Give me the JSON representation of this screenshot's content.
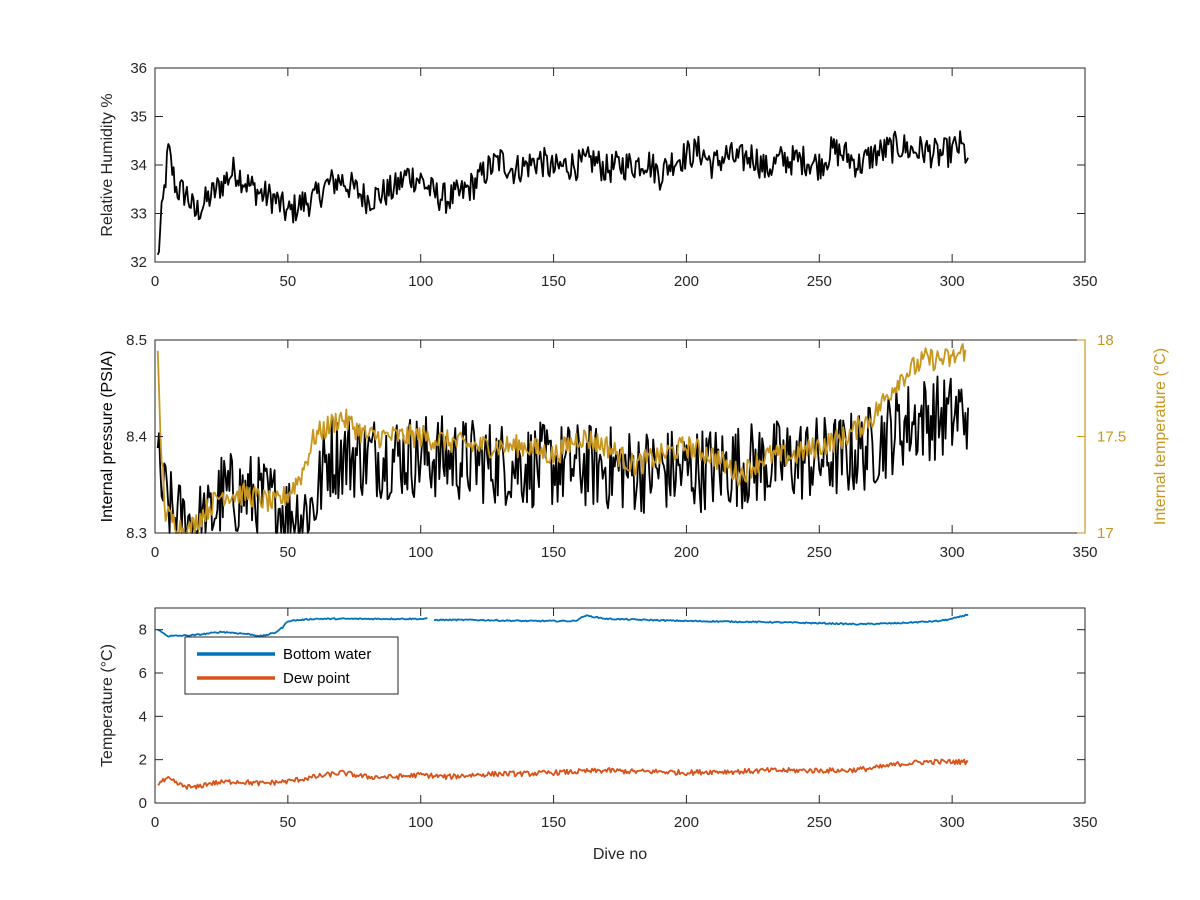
{
  "chart_data": [
    {
      "type": "line",
      "title": "",
      "xlabel": "",
      "ylabel": "Relative Humidity %",
      "xlim": [
        0,
        350
      ],
      "ylim": [
        32,
        36
      ],
      "xticks": [
        0,
        50,
        100,
        150,
        200,
        250,
        300,
        350
      ],
      "yticks": [
        32,
        33,
        34,
        35,
        36
      ],
      "grid": false,
      "series": [
        {
          "axis": "left",
          "color": "#000000",
          "points": [
            [
              1,
              32.05
            ],
            [
              3,
              33.2
            ],
            [
              5,
              34.3
            ],
            [
              8,
              33.5
            ],
            [
              12,
              33.4
            ],
            [
              15,
              33.0
            ],
            [
              20,
              33.3
            ],
            [
              25,
              33.6
            ],
            [
              30,
              33.9
            ],
            [
              35,
              33.6
            ],
            [
              40,
              33.4
            ],
            [
              45,
              33.3
            ],
            [
              50,
              33.0
            ],
            [
              55,
              33.2
            ],
            [
              60,
              33.3
            ],
            [
              65,
              33.6
            ],
            [
              70,
              33.7
            ],
            [
              75,
              33.5
            ],
            [
              80,
              33.3
            ],
            [
              85,
              33.4
            ],
            [
              90,
              33.5
            ],
            [
              95,
              33.8
            ],
            [
              100,
              33.7
            ],
            [
              105,
              33.4
            ],
            [
              110,
              33.3
            ],
            [
              115,
              33.4
            ],
            [
              120,
              33.6
            ],
            [
              125,
              33.9
            ],
            [
              130,
              34.1
            ],
            [
              135,
              33.9
            ],
            [
              140,
              34.0
            ],
            [
              145,
              34.1
            ],
            [
              150,
              33.9
            ],
            [
              155,
              34.0
            ],
            [
              160,
              34.0
            ],
            [
              165,
              34.1
            ],
            [
              170,
              33.9
            ],
            [
              175,
              34.0
            ],
            [
              180,
              34.0
            ],
            [
              185,
              34.1
            ],
            [
              190,
              33.8
            ],
            [
              195,
              34.1
            ],
            [
              200,
              34.2
            ],
            [
              205,
              34.3
            ],
            [
              210,
              34.0
            ],
            [
              215,
              34.2
            ],
            [
              220,
              34.1
            ],
            [
              225,
              34.2
            ],
            [
              230,
              33.9
            ],
            [
              235,
              34.1
            ],
            [
              240,
              34.1
            ],
            [
              245,
              34.1
            ],
            [
              250,
              34.0
            ],
            [
              255,
              34.3
            ],
            [
              260,
              34.2
            ],
            [
              265,
              34.0
            ],
            [
              270,
              34.2
            ],
            [
              275,
              34.3
            ],
            [
              280,
              34.4
            ],
            [
              285,
              34.3
            ],
            [
              290,
              34.3
            ],
            [
              295,
              34.2
            ],
            [
              300,
              34.3
            ],
            [
              303,
              34.4
            ],
            [
              306,
              34.15
            ]
          ],
          "noise": 0.32
        }
      ]
    },
    {
      "type": "line",
      "title": "",
      "xlabel": "",
      "ylabel": "Internal pressure (PSIA)",
      "ylabel_right": "Internal temperature (°C)",
      "xlim": [
        0,
        350
      ],
      "ylim": [
        8.3,
        8.5
      ],
      "ylim_right": [
        17,
        18
      ],
      "xticks": [
        0,
        50,
        100,
        150,
        200,
        250,
        300,
        350
      ],
      "yticks": [
        8.3,
        8.4,
        8.5
      ],
      "yticks_right": [
        17,
        17.5,
        18
      ],
      "grid": false,
      "series": [
        {
          "axis": "left",
          "color": "#000000",
          "points": [
            [
              1,
              8.37
            ],
            [
              3,
              8.34
            ],
            [
              6,
              8.32
            ],
            [
              10,
              8.31
            ],
            [
              15,
              8.31
            ],
            [
              20,
              8.31
            ],
            [
              25,
              8.34
            ],
            [
              35,
              8.34
            ],
            [
              45,
              8.33
            ],
            [
              50,
              8.32
            ],
            [
              55,
              8.32
            ],
            [
              60,
              8.33
            ],
            [
              65,
              8.38
            ],
            [
              80,
              8.38
            ],
            [
              100,
              8.38
            ],
            [
              120,
              8.375
            ],
            [
              140,
              8.37
            ],
            [
              160,
              8.37
            ],
            [
              180,
              8.365
            ],
            [
              200,
              8.365
            ],
            [
              220,
              8.37
            ],
            [
              240,
              8.375
            ],
            [
              260,
              8.38
            ],
            [
              270,
              8.39
            ],
            [
              280,
              8.41
            ],
            [
              290,
              8.42
            ],
            [
              300,
              8.42
            ],
            [
              306,
              8.43
            ]
          ],
          "noise": 0.045
        },
        {
          "axis": "right",
          "color": "#c8961e",
          "points": [
            [
              1,
              17.9
            ],
            [
              2,
              17.5
            ],
            [
              4,
              17.1
            ],
            [
              8,
              17.05
            ],
            [
              12,
              17.0
            ],
            [
              18,
              17.1
            ],
            [
              25,
              17.2
            ],
            [
              35,
              17.2
            ],
            [
              45,
              17.15
            ],
            [
              50,
              17.2
            ],
            [
              55,
              17.3
            ],
            [
              60,
              17.5
            ],
            [
              70,
              17.6
            ],
            [
              80,
              17.5
            ],
            [
              100,
              17.5
            ],
            [
              120,
              17.45
            ],
            [
              140,
              17.45
            ],
            [
              150,
              17.4
            ],
            [
              160,
              17.5
            ],
            [
              170,
              17.45
            ],
            [
              180,
              17.35
            ],
            [
              190,
              17.4
            ],
            [
              200,
              17.45
            ],
            [
              210,
              17.4
            ],
            [
              220,
              17.3
            ],
            [
              230,
              17.4
            ],
            [
              240,
              17.4
            ],
            [
              250,
              17.45
            ],
            [
              260,
              17.5
            ],
            [
              265,
              17.55
            ],
            [
              270,
              17.6
            ],
            [
              275,
              17.7
            ],
            [
              280,
              17.8
            ],
            [
              285,
              17.85
            ],
            [
              290,
              17.9
            ],
            [
              300,
              17.9
            ],
            [
              305,
              17.95
            ]
          ],
          "noise": 0.06
        }
      ]
    },
    {
      "type": "line",
      "title": "",
      "xlabel": "Dive no",
      "ylabel": "Temperature (°C)",
      "xlim": [
        0,
        350
      ],
      "ylim": [
        0,
        9
      ],
      "xticks": [
        0,
        50,
        100,
        150,
        200,
        250,
        300,
        350
      ],
      "yticks": [
        0,
        2,
        4,
        6,
        8
      ],
      "grid": false,
      "legend": {
        "location": "top-left",
        "entries": [
          "Bottom water",
          "Dew point"
        ]
      },
      "series": [
        {
          "name": "Bottom water",
          "axis": "left",
          "color": "#0072bd",
          "points": [
            [
              1,
              8.0
            ],
            [
              5,
              7.7
            ],
            [
              15,
              7.75
            ],
            [
              25,
              7.9
            ],
            [
              35,
              7.8
            ],
            [
              40,
              7.7
            ],
            [
              45,
              7.85
            ],
            [
              48,
              8.1
            ],
            [
              50,
              8.4
            ],
            [
              60,
              8.5
            ],
            [
              80,
              8.5
            ],
            [
              103,
              8.5
            ],
            [
              null,
              null
            ],
            [
              105,
              8.45
            ],
            [
              120,
              8.45
            ],
            [
              140,
              8.4
            ],
            [
              158,
              8.4
            ],
            [
              162,
              8.65
            ],
            [
              170,
              8.5
            ],
            [
              200,
              8.4
            ],
            [
              230,
              8.35
            ],
            [
              250,
              8.3
            ],
            [
              265,
              8.25
            ],
            [
              280,
              8.3
            ],
            [
              295,
              8.4
            ],
            [
              300,
              8.5
            ],
            [
              306,
              8.7
            ]
          ],
          "noise": 0.03
        },
        {
          "name": "Dew point",
          "axis": "left",
          "color": "#d95319",
          "points": [
            [
              1,
              0.9
            ],
            [
              5,
              1.1
            ],
            [
              10,
              0.8
            ],
            [
              15,
              0.7
            ],
            [
              20,
              0.9
            ],
            [
              30,
              1.0
            ],
            [
              40,
              0.9
            ],
            [
              50,
              1.0
            ],
            [
              60,
              1.2
            ],
            [
              70,
              1.4
            ],
            [
              80,
              1.2
            ],
            [
              90,
              1.2
            ],
            [
              100,
              1.3
            ],
            [
              110,
              1.2
            ],
            [
              120,
              1.3
            ],
            [
              130,
              1.35
            ],
            [
              140,
              1.35
            ],
            [
              150,
              1.4
            ],
            [
              160,
              1.45
            ],
            [
              170,
              1.5
            ],
            [
              180,
              1.45
            ],
            [
              190,
              1.45
            ],
            [
              200,
              1.4
            ],
            [
              210,
              1.45
            ],
            [
              220,
              1.45
            ],
            [
              230,
              1.5
            ],
            [
              240,
              1.5
            ],
            [
              250,
              1.5
            ],
            [
              260,
              1.5
            ],
            [
              270,
              1.6
            ],
            [
              280,
              1.8
            ],
            [
              290,
              1.9
            ],
            [
              300,
              1.9
            ],
            [
              306,
              1.9
            ]
          ],
          "noise": 0.12
        }
      ]
    }
  ]
}
